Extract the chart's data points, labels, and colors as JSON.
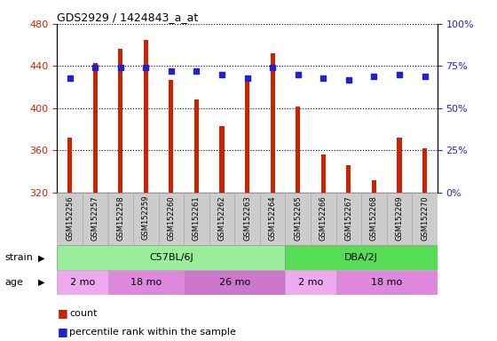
{
  "title": "GDS2929 / 1424843_a_at",
  "samples": [
    "GSM152256",
    "GSM152257",
    "GSM152258",
    "GSM152259",
    "GSM152260",
    "GSM152261",
    "GSM152262",
    "GSM152263",
    "GSM152264",
    "GSM152265",
    "GSM152266",
    "GSM152267",
    "GSM152268",
    "GSM152269",
    "GSM152270"
  ],
  "counts": [
    372,
    443,
    456,
    465,
    427,
    408,
    383,
    425,
    452,
    402,
    356,
    346,
    332,
    372,
    362
  ],
  "percentile_ranks": [
    68,
    74,
    74,
    74,
    72,
    72,
    70,
    68,
    74,
    70,
    68,
    67,
    69,
    70,
    69
  ],
  "ylim_left": [
    320,
    480
  ],
  "ylim_right": [
    0,
    100
  ],
  "yticks_left": [
    320,
    360,
    400,
    440,
    480
  ],
  "yticks_right": [
    0,
    25,
    50,
    75,
    100
  ],
  "bar_color": "#cc2200",
  "dot_color": "#2222cc",
  "strain_groups": [
    {
      "label": "C57BL/6J",
      "start": 0,
      "end": 9,
      "color": "#99ee99"
    },
    {
      "label": "DBA/2J",
      "start": 9,
      "end": 15,
      "color": "#55dd55"
    }
  ],
  "age_groups": [
    {
      "label": "2 mo",
      "start": 0,
      "end": 2,
      "color": "#eeaaee"
    },
    {
      "label": "18 mo",
      "start": 2,
      "end": 5,
      "color": "#dd88dd"
    },
    {
      "label": "26 mo",
      "start": 5,
      "end": 9,
      "color": "#cc77cc"
    },
    {
      "label": "2 mo",
      "start": 9,
      "end": 11,
      "color": "#eeaaee"
    },
    {
      "label": "18 mo",
      "start": 11,
      "end": 15,
      "color": "#dd88dd"
    }
  ],
  "legend_items": [
    {
      "label": "count",
      "color": "#cc2200"
    },
    {
      "label": "percentile rank within the sample",
      "color": "#2222cc"
    }
  ],
  "tick_label_color_left": "#cc2200",
  "tick_label_color_right": "#2222cc",
  "bar_bottom": 320,
  "plot_bg": "#ffffff",
  "strain_label": "strain",
  "age_label": "age"
}
